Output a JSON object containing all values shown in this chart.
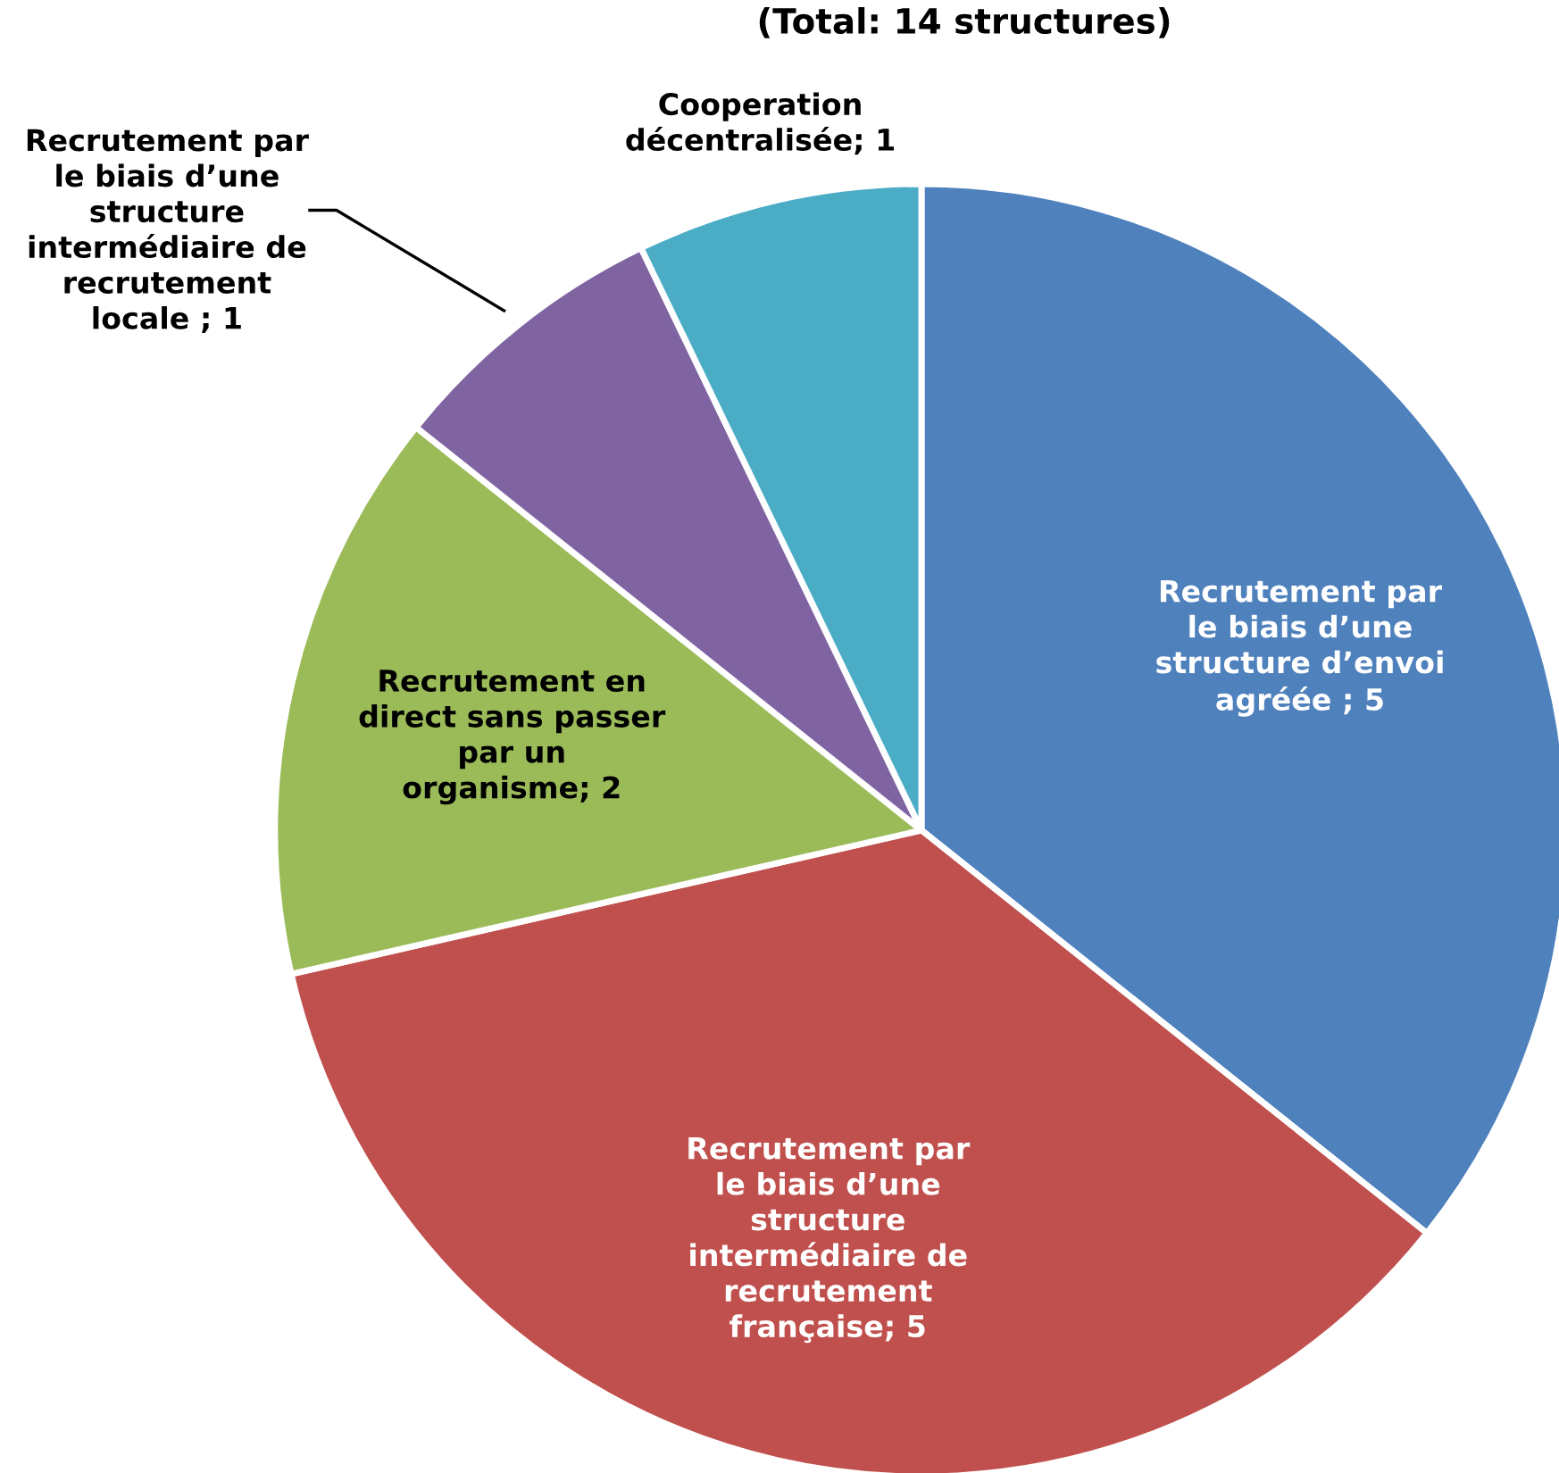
{
  "chart_data": {
    "type": "pie",
    "title": "(Total: 14 structures)",
    "categories": [
      "Recrutement par\nle biais d’une\nstructure d’envoi\nagréée",
      "Recrutement par\nle biais d’une\nstructure\nintermédiaire de\nrecrutement\nfrançaise",
      "Recrutement en\ndirect sans passer\npar un\norganisme",
      "Recrutement par\nle biais d’une\nstructure\nintermédiaire de\nrecrutement\nlocale",
      "Cooperation\ndécentralisée"
    ],
    "values": [
      5,
      5,
      2,
      1,
      1
    ],
    "value_labels": [
      " ; 5",
      "; 5",
      "; 2",
      " ; 1",
      "; 1"
    ],
    "colors": [
      "#4f81bd",
      "#c0504d",
      "#9bbb59",
      "#8064a2",
      "#4bacc6"
    ]
  }
}
